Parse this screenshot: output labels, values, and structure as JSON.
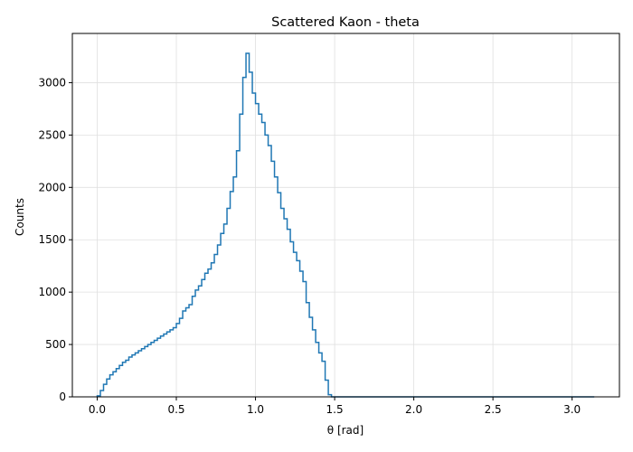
{
  "chart_data": {
    "type": "line",
    "style": "step-histogram",
    "title": "Scattered Kaon - theta",
    "xlabel": "θ [rad]",
    "ylabel": "Counts",
    "xlim": [
      -0.157,
      3.299
    ],
    "ylim": [
      0,
      3470
    ],
    "grid": true,
    "x_ticks": [
      0.0,
      0.5,
      1.0,
      1.5,
      2.0,
      2.5,
      3.0
    ],
    "x_tick_labels": [
      "0.0",
      "0.5",
      "1.0",
      "1.5",
      "2.0",
      "2.5",
      "3.0"
    ],
    "y_ticks": [
      0,
      500,
      1000,
      1500,
      2000,
      2500,
      3000
    ],
    "y_tick_labels": [
      "0",
      "500",
      "1000",
      "1500",
      "2000",
      "2500",
      "3000"
    ],
    "colors": {
      "series": "#1f77b4",
      "grid": "#e0e0e0",
      "axes": "#000000"
    },
    "series": [
      {
        "x": [
          0.0,
          0.02,
          0.04,
          0.06,
          0.08,
          0.1,
          0.12,
          0.14,
          0.16,
          0.18,
          0.2,
          0.22,
          0.24,
          0.26,
          0.28,
          0.3,
          0.32,
          0.34,
          0.36,
          0.38,
          0.4,
          0.42,
          0.44,
          0.46,
          0.48,
          0.5,
          0.52,
          0.54,
          0.56,
          0.58,
          0.6,
          0.62,
          0.64,
          0.66,
          0.68,
          0.7,
          0.72,
          0.74,
          0.76,
          0.78,
          0.8,
          0.82,
          0.84,
          0.86,
          0.88,
          0.9,
          0.92,
          0.94,
          0.96,
          0.98,
          1.0,
          1.02,
          1.04,
          1.06,
          1.08,
          1.1,
          1.12,
          1.14,
          1.16,
          1.18,
          1.2,
          1.22,
          1.24,
          1.26,
          1.28,
          1.3,
          1.32,
          1.34,
          1.36,
          1.38,
          1.4,
          1.42,
          1.44,
          1.46,
          1.48,
          1.5,
          1.52,
          1.54,
          1.56,
          1.6,
          3.14
        ],
        "values": [
          10,
          60,
          120,
          170,
          210,
          240,
          270,
          300,
          330,
          350,
          380,
          400,
          420,
          440,
          460,
          480,
          500,
          520,
          540,
          560,
          580,
          600,
          620,
          640,
          660,
          700,
          750,
          820,
          850,
          880,
          960,
          1020,
          1060,
          1120,
          1180,
          1220,
          1280,
          1360,
          1450,
          1560,
          1650,
          1800,
          1960,
          2100,
          2350,
          2700,
          3050,
          3280,
          3100,
          2900,
          2800,
          2700,
          2620,
          2500,
          2400,
          2250,
          2100,
          1950,
          1800,
          1700,
          1600,
          1480,
          1380,
          1300,
          1200,
          1100,
          900,
          760,
          640,
          520,
          420,
          340,
          160,
          20,
          0,
          0,
          0,
          0,
          0,
          0,
          0
        ]
      }
    ]
  }
}
